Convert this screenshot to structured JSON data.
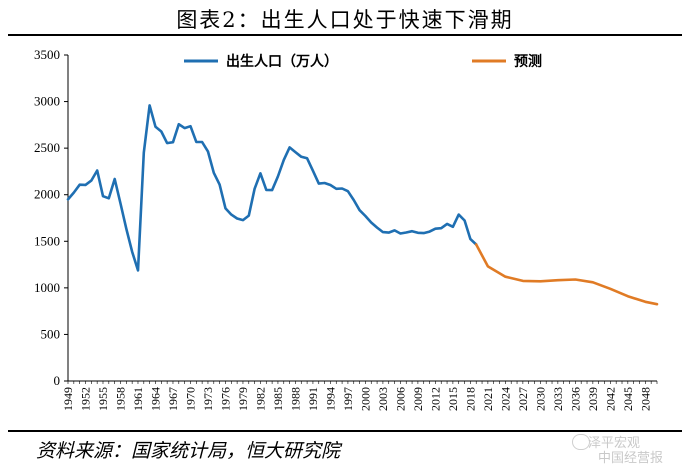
{
  "title": "图表2：出生人口处于快速下滑期",
  "source": "资料来源：国家统计局，恒大研究院",
  "watermark": {
    "line1": "泽平宏观",
    "line2": "中国经营报"
  },
  "colors": {
    "actual": "#1f6fb2",
    "forecast": "#e07b25",
    "axis": "#000000"
  },
  "chart_data": {
    "type": "line",
    "ylim": [
      0,
      3500
    ],
    "xlim": [
      1949,
      2050
    ],
    "yticks": [
      0,
      500,
      1000,
      1500,
      2000,
      2500,
      3000,
      3500
    ],
    "xtick_labels": [
      "1949",
      "1952",
      "1955",
      "1958",
      "1961",
      "1964",
      "1967",
      "1970",
      "1973",
      "1976",
      "1979",
      "1982",
      "1985",
      "1988",
      "1991",
      "1994",
      "1997",
      "2000",
      "2003",
      "2006",
      "2009",
      "2012",
      "2015",
      "2018",
      "2021",
      "2024",
      "2027",
      "2030",
      "2033",
      "2036",
      "2039",
      "2042",
      "2045",
      "2048"
    ],
    "legend_position": "top",
    "grid": false,
    "series": [
      {
        "name": "出生人口（万人）",
        "color": "#1f6fb2",
        "x": [
          1949,
          1950,
          1951,
          1952,
          1953,
          1954,
          1955,
          1956,
          1957,
          1958,
          1959,
          1960,
          1961,
          1962,
          1963,
          1964,
          1965,
          1966,
          1967,
          1968,
          1969,
          1970,
          1971,
          1972,
          1973,
          1974,
          1975,
          1976,
          1977,
          1978,
          1979,
          1980,
          1981,
          1982,
          1983,
          1984,
          1985,
          1986,
          1987,
          1988,
          1989,
          1990,
          1991,
          1992,
          1993,
          1994,
          1995,
          1996,
          1997,
          1998,
          1999,
          2000,
          2001,
          2002,
          2003,
          2004,
          2005,
          2006,
          2007,
          2008,
          2009,
          2010,
          2011,
          2012,
          2013,
          2014,
          2015,
          2016,
          2017,
          2018,
          2019
        ],
        "values": [
          1950,
          2023,
          2107,
          2105,
          2151,
          2260,
          1984,
          1961,
          2169,
          1906,
          1635,
          1389,
          1187,
          2451,
          2959,
          2729,
          2679,
          2554,
          2564,
          2757,
          2715,
          2736,
          2567,
          2566,
          2463,
          2235,
          2109,
          1853,
          1786,
          1745,
          1727,
          1776,
          2064,
          2230,
          2052,
          2050,
          2196,
          2374,
          2508,
          2457,
          2407,
          2391,
          2258,
          2119,
          2126,
          2104,
          2063,
          2067,
          2038,
          1942,
          1834,
          1771,
          1702,
          1647,
          1599,
          1593,
          1617,
          1584,
          1594,
          1608,
          1591,
          1588,
          1604,
          1635,
          1640,
          1687,
          1655,
          1786,
          1723,
          1523,
          1465
        ]
      },
      {
        "name": "预测",
        "color": "#e07b25",
        "x": [
          2019,
          2021,
          2024,
          2027,
          2030,
          2033,
          2036,
          2039,
          2042,
          2045,
          2048,
          2050
        ],
        "values": [
          1465,
          1230,
          1120,
          1075,
          1070,
          1082,
          1090,
          1060,
          990,
          910,
          850,
          825
        ]
      }
    ]
  }
}
